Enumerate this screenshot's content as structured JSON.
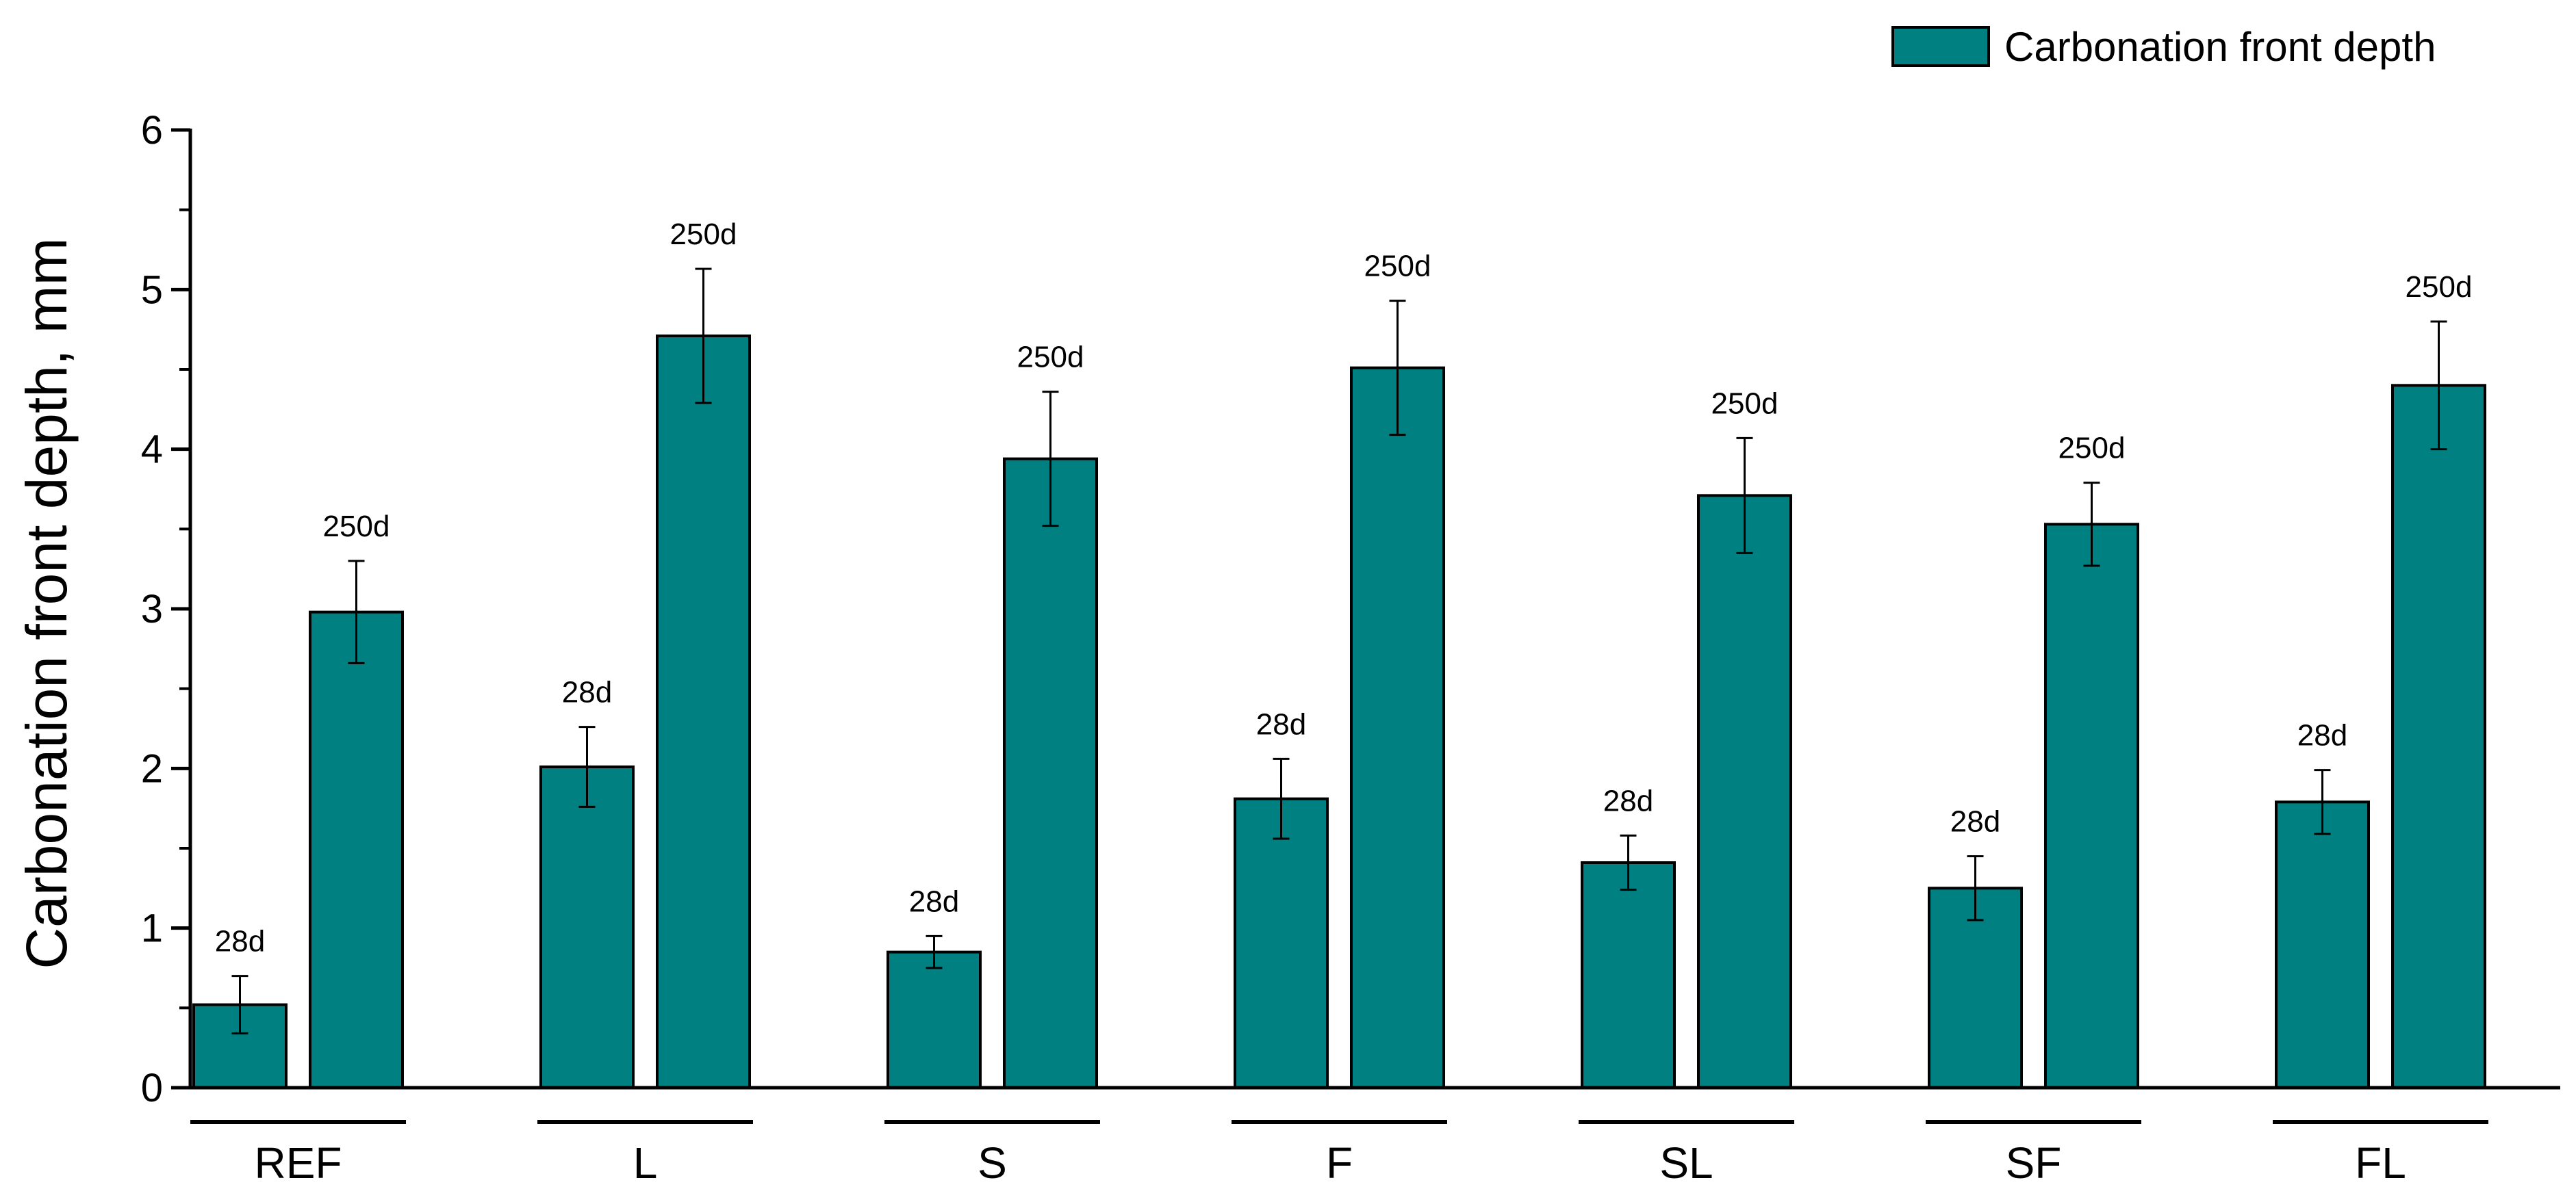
{
  "chart_data": {
    "type": "bar",
    "title": "",
    "xlabel": "",
    "ylabel": "Carbonation front depth, mm",
    "ylim": [
      0,
      6
    ],
    "yticks": [
      0,
      1,
      2,
      3,
      4,
      5,
      6
    ],
    "categories": [
      "REF",
      "L",
      "S",
      "F",
      "SL",
      "SF",
      "FL"
    ],
    "bar_color": "#008080",
    "legend": {
      "position": "top-right",
      "label": "Carbonation front depth"
    },
    "series": [
      {
        "bar_label": "28d",
        "values": [
          0.52,
          2.01,
          0.85,
          1.81,
          1.41,
          1.25,
          1.79
        ],
        "errors": [
          0.18,
          0.25,
          0.1,
          0.25,
          0.17,
          0.2,
          0.2
        ]
      },
      {
        "bar_label": "250d",
        "values": [
          2.98,
          4.71,
          3.94,
          4.51,
          3.71,
          3.53,
          4.4
        ],
        "errors": [
          0.32,
          0.42,
          0.42,
          0.42,
          0.36,
          0.26,
          0.4
        ]
      }
    ]
  }
}
